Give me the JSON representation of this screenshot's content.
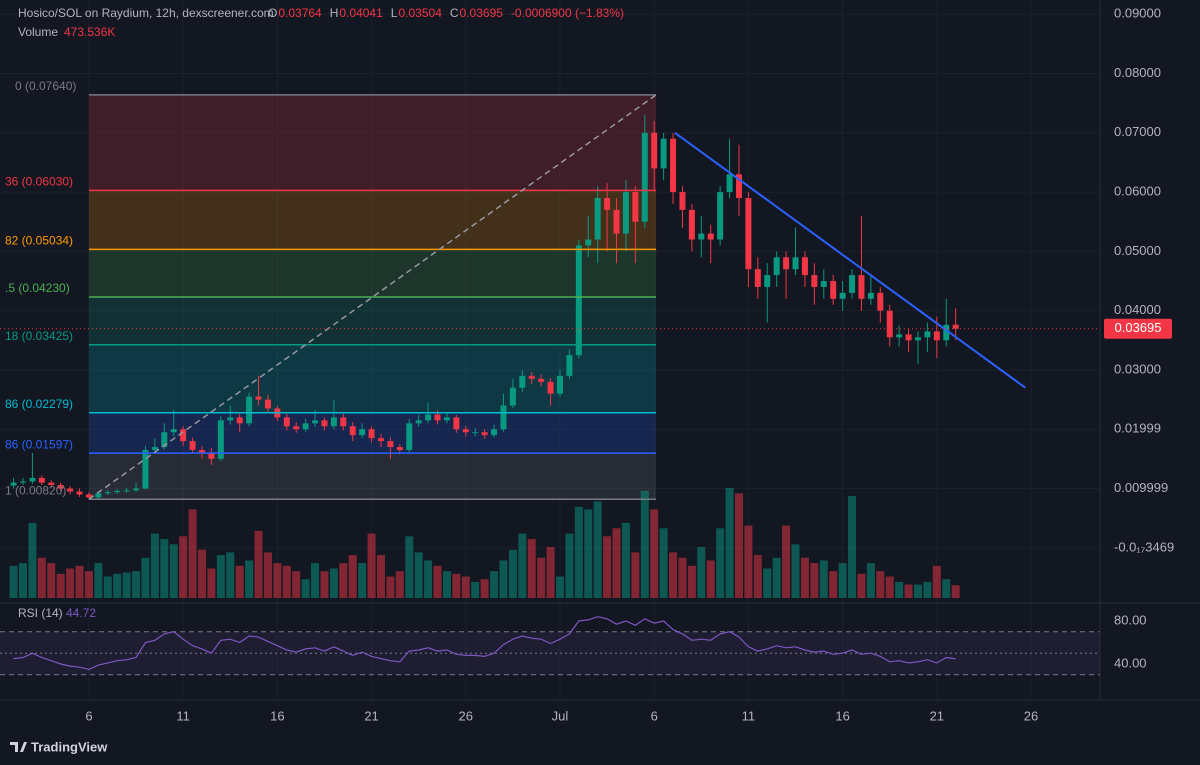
{
  "chart_data": {
    "type": "candlestick",
    "title": "Hosico/SOL on Raydium, 12h, dexscreener.com",
    "ohlc_labels": [
      "O",
      "H",
      "L",
      "C"
    ],
    "change": "-0.0006900 (−1.83%)",
    "up_color": "#089981",
    "down_color": "#f23645",
    "x": [
      1,
      1.5,
      2,
      2.5,
      3,
      3.5,
      4,
      4.5,
      5,
      5.5,
      6,
      6.5,
      7,
      7.5,
      8,
      8.5,
      9,
      9.5,
      10,
      10.5,
      11,
      11.5,
      12,
      12.5,
      13,
      13.5,
      14,
      14.5,
      15,
      15.5,
      16,
      16.5,
      17,
      17.5,
      18,
      18.5,
      19,
      19.5,
      20,
      20.5,
      21,
      21.5,
      22,
      22.5,
      23,
      23.5,
      24,
      24.5,
      25,
      25.5,
      26,
      26.5,
      27,
      27.5,
      28,
      28.5,
      29,
      29.5,
      30,
      30.5,
      31,
      31.5,
      32,
      32.5,
      33,
      33.5,
      34,
      34.5,
      35,
      35.5,
      36,
      36.5,
      37,
      37.5,
      38,
      38.5,
      39,
      39.5,
      40,
      40.5,
      41,
      41.5,
      42,
      42.5,
      43,
      43.5,
      44,
      44.5,
      45,
      45.5,
      46,
      46.5,
      47,
      47.5,
      48,
      48.5,
      49,
      49.5,
      50,
      50.5,
      51
    ],
    "candles": [
      [
        0.0105,
        0.0118,
        0.01,
        0.011
      ],
      [
        0.011,
        0.0118,
        0.0106,
        0.0112
      ],
      [
        0.0112,
        0.016,
        0.0108,
        0.0118
      ],
      [
        0.0118,
        0.0122,
        0.0106,
        0.011
      ],
      [
        0.011,
        0.0114,
        0.0102,
        0.0106
      ],
      [
        0.0106,
        0.011,
        0.0096,
        0.01
      ],
      [
        0.01,
        0.0104,
        0.009,
        0.0095
      ],
      [
        0.0095,
        0.01,
        0.0086,
        0.009
      ],
      [
        0.009,
        0.0094,
        0.0082,
        0.0085
      ],
      [
        0.0085,
        0.0096,
        0.0083,
        0.0092
      ],
      [
        0.0092,
        0.0098,
        0.0089,
        0.0094
      ],
      [
        0.0094,
        0.0099,
        0.0091,
        0.0096
      ],
      [
        0.0096,
        0.0101,
        0.0093,
        0.0097
      ],
      [
        0.0097,
        0.011,
        0.0094,
        0.01
      ],
      [
        0.01,
        0.0172,
        0.0098,
        0.0165
      ],
      [
        0.0165,
        0.0185,
        0.016,
        0.017
      ],
      [
        0.017,
        0.021,
        0.0166,
        0.0195
      ],
      [
        0.0195,
        0.0232,
        0.0188,
        0.02
      ],
      [
        0.02,
        0.0205,
        0.0172,
        0.018
      ],
      [
        0.018,
        0.0186,
        0.016,
        0.0165
      ],
      [
        0.0165,
        0.0172,
        0.015,
        0.016
      ],
      [
        0.016,
        0.0168,
        0.014,
        0.015
      ],
      [
        0.015,
        0.0222,
        0.0146,
        0.0215
      ],
      [
        0.0215,
        0.024,
        0.0208,
        0.022
      ],
      [
        0.022,
        0.0226,
        0.0195,
        0.021
      ],
      [
        0.021,
        0.0262,
        0.0205,
        0.0255
      ],
      [
        0.0255,
        0.029,
        0.024,
        0.025
      ],
      [
        0.025,
        0.0258,
        0.0228,
        0.0235
      ],
      [
        0.0235,
        0.024,
        0.0214,
        0.022
      ],
      [
        0.022,
        0.0226,
        0.0198,
        0.0205
      ],
      [
        0.0205,
        0.0212,
        0.0194,
        0.02
      ],
      [
        0.02,
        0.0218,
        0.0196,
        0.021
      ],
      [
        0.021,
        0.0232,
        0.0204,
        0.0215
      ],
      [
        0.0215,
        0.022,
        0.0198,
        0.0205
      ],
      [
        0.0205,
        0.025,
        0.02,
        0.022
      ],
      [
        0.022,
        0.0226,
        0.0198,
        0.0205
      ],
      [
        0.0205,
        0.0212,
        0.018,
        0.019
      ],
      [
        0.019,
        0.021,
        0.0185,
        0.02
      ],
      [
        0.02,
        0.0205,
        0.0178,
        0.0185
      ],
      [
        0.0185,
        0.0192,
        0.017,
        0.018
      ],
      [
        0.018,
        0.0186,
        0.015,
        0.017
      ],
      [
        0.017,
        0.0175,
        0.0158,
        0.0165
      ],
      [
        0.0165,
        0.0218,
        0.016,
        0.021
      ],
      [
        0.021,
        0.0225,
        0.0204,
        0.0215
      ],
      [
        0.0215,
        0.0245,
        0.021,
        0.0225
      ],
      [
        0.0225,
        0.0232,
        0.0208,
        0.0215
      ],
      [
        0.0215,
        0.0228,
        0.021,
        0.022
      ],
      [
        0.022,
        0.0224,
        0.0194,
        0.02
      ],
      [
        0.02,
        0.0206,
        0.0188,
        0.0195
      ],
      [
        0.0195,
        0.0202,
        0.0188,
        0.0195
      ],
      [
        0.0195,
        0.02,
        0.0184,
        0.019
      ],
      [
        0.019,
        0.0208,
        0.0186,
        0.02
      ],
      [
        0.02,
        0.026,
        0.0196,
        0.024
      ],
      [
        0.024,
        0.0285,
        0.0236,
        0.027
      ],
      [
        0.027,
        0.03,
        0.0262,
        0.029
      ],
      [
        0.029,
        0.0296,
        0.0276,
        0.0285
      ],
      [
        0.0285,
        0.0292,
        0.0272,
        0.028
      ],
      [
        0.028,
        0.0286,
        0.024,
        0.026
      ],
      [
        0.026,
        0.03,
        0.0255,
        0.029
      ],
      [
        0.029,
        0.0335,
        0.0285,
        0.0325
      ],
      [
        0.0325,
        0.052,
        0.032,
        0.051
      ],
      [
        0.051,
        0.056,
        0.049,
        0.052
      ],
      [
        0.052,
        0.061,
        0.048,
        0.059
      ],
      [
        0.059,
        0.0615,
        0.05,
        0.057
      ],
      [
        0.057,
        0.059,
        0.048,
        0.053
      ],
      [
        0.053,
        0.062,
        0.05,
        0.06
      ],
      [
        0.06,
        0.061,
        0.048,
        0.055
      ],
      [
        0.055,
        0.073,
        0.054,
        0.07
      ],
      [
        0.07,
        0.072,
        0.06,
        0.064
      ],
      [
        0.064,
        0.07,
        0.062,
        0.069
      ],
      [
        0.069,
        0.07,
        0.058,
        0.06
      ],
      [
        0.06,
        0.061,
        0.054,
        0.057
      ],
      [
        0.057,
        0.058,
        0.05,
        0.052
      ],
      [
        0.052,
        0.056,
        0.049,
        0.053
      ],
      [
        0.053,
        0.0545,
        0.048,
        0.052
      ],
      [
        0.052,
        0.061,
        0.051,
        0.06
      ],
      [
        0.06,
        0.069,
        0.059,
        0.063
      ],
      [
        0.063,
        0.068,
        0.056,
        0.059
      ],
      [
        0.059,
        0.06,
        0.044,
        0.047
      ],
      [
        0.047,
        0.049,
        0.042,
        0.044
      ],
      [
        0.044,
        0.048,
        0.038,
        0.046
      ],
      [
        0.046,
        0.05,
        0.044,
        0.049
      ],
      [
        0.049,
        0.05,
        0.042,
        0.047
      ],
      [
        0.047,
        0.054,
        0.046,
        0.049
      ],
      [
        0.049,
        0.05,
        0.044,
        0.046
      ],
      [
        0.046,
        0.048,
        0.041,
        0.044
      ],
      [
        0.044,
        0.047,
        0.042,
        0.045
      ],
      [
        0.045,
        0.046,
        0.041,
        0.042
      ],
      [
        0.042,
        0.045,
        0.04,
        0.043
      ],
      [
        0.043,
        0.047,
        0.042,
        0.046
      ],
      [
        0.046,
        0.056,
        0.04,
        0.042
      ],
      [
        0.042,
        0.046,
        0.041,
        0.043
      ],
      [
        0.043,
        0.044,
        0.038,
        0.04
      ],
      [
        0.04,
        0.041,
        0.034,
        0.0355
      ],
      [
        0.0355,
        0.0375,
        0.034,
        0.036
      ],
      [
        0.036,
        0.037,
        0.033,
        0.035
      ],
      [
        0.035,
        0.0365,
        0.031,
        0.0355
      ],
      [
        0.0355,
        0.038,
        0.033,
        0.0365
      ],
      [
        0.0365,
        0.039,
        0.032,
        0.035
      ],
      [
        0.035,
        0.042,
        0.034,
        0.0376
      ],
      [
        0.03764,
        0.04041,
        0.03504,
        0.03695
      ]
    ],
    "xlim": [
      0.28,
      58.66
    ],
    "ylim": [
      -0.0088,
      0.0924
    ],
    "xticks": [
      {
        "value": 5,
        "label": "6"
      },
      {
        "value": 10,
        "label": "11"
      },
      {
        "value": 15,
        "label": "16"
      },
      {
        "value": 20,
        "label": "21"
      },
      {
        "value": 25,
        "label": "26"
      },
      {
        "value": 30,
        "label": "Jul"
      },
      {
        "value": 35,
        "label": "6"
      },
      {
        "value": 40,
        "label": "11"
      },
      {
        "value": 45,
        "label": "16"
      },
      {
        "value": 50,
        "label": "21"
      },
      {
        "value": 55,
        "label": "26"
      }
    ],
    "yticks": [
      {
        "value": 0.09,
        "label": "0.09000"
      },
      {
        "value": 0.08,
        "label": "0.08000"
      },
      {
        "value": 0.07,
        "label": "0.07000"
      },
      {
        "value": 0.06,
        "label": "0.06000"
      },
      {
        "value": 0.05,
        "label": "0.05000"
      },
      {
        "value": 0.04,
        "label": "0.04000"
      },
      {
        "value": 0.03,
        "label": "0.03000"
      },
      {
        "value": 0.01999,
        "label": "0.01999"
      },
      {
        "value": 0.009999,
        "label": "0.009999"
      },
      {
        "value": -3.469e-18,
        "label": "-0.0₁₇3469"
      }
    ],
    "grid": true,
    "volume": {
      "label": "Volume",
      "last_label": "473.536K",
      "values": [
        1200,
        1300,
        2800,
        1500,
        1300,
        900,
        1100,
        1200,
        1000,
        1300,
        800,
        900,
        950,
        1000,
        1500,
        2400,
        2200,
        2000,
        2300,
        3300,
        1800,
        1100,
        1600,
        1700,
        1200,
        1400,
        2500,
        1700,
        1300,
        1200,
        1000,
        700,
        1300,
        1000,
        1100,
        1300,
        1600,
        1300,
        2400,
        1600,
        800,
        1000,
        2300,
        1700,
        1400,
        1200,
        1000,
        900,
        800,
        600,
        700,
        1000,
        1400,
        1800,
        2400,
        2200,
        1500,
        1900,
        800,
        2400,
        3400,
        3300,
        3600,
        2300,
        2600,
        2800,
        1700,
        4000,
        3300,
        2600,
        1700,
        1500,
        1200,
        1900,
        1400,
        2600,
        4100,
        3900,
        2700,
        1600,
        1100,
        1500,
        2700,
        2000,
        1500,
        1300,
        1400,
        1000,
        1300,
        3800,
        900,
        1300,
        1000,
        800,
        600,
        500,
        500,
        600,
        1200,
        700,
        473.536
      ]
    },
    "fib": {
      "x": [
        5,
        35.1
      ],
      "levels": [
        {
          "value": 0.0764,
          "label": "0 (0.07640)",
          "color": "#787b86"
        },
        {
          "value": 0.0603,
          "label": "36 (0.06030)",
          "color": "#f23645"
        },
        {
          "value": 0.05034,
          "label": "82 (0.05034)",
          "color": "#ff9800"
        },
        {
          "value": 0.0423,
          "label": ".5 (0.04230)",
          "color": "#4caf50"
        },
        {
          "value": 0.03425,
          "label": "18 (0.03425)",
          "color": "#089981"
        },
        {
          "value": 0.02279,
          "label": "86 (0.02279)",
          "color": "#00bcd4"
        },
        {
          "value": 0.01597,
          "label": "86 (0.01597)",
          "color": "#2962ff"
        },
        {
          "value": 0.0082,
          "label": "1 (0.00820)",
          "color": "#787b86"
        }
      ]
    },
    "trendline": {
      "x": [
        36.1,
        54.7
      ],
      "y": [
        0.07,
        0.027
      ],
      "color": "#2962ff"
    },
    "rsi": {
      "label": "RSI (14)",
      "color": "#7e57c2",
      "ylim": [
        15.8,
        96.7
      ],
      "yticks": [
        {
          "value": 80,
          "label": "80.00"
        },
        {
          "value": 40,
          "label": "40.00"
        }
      ],
      "levels": [
        70,
        50,
        30
      ],
      "values": [
        45,
        46,
        50,
        46,
        43,
        40,
        38,
        37,
        35,
        39,
        41,
        43,
        44,
        46,
        60,
        62,
        68,
        70,
        63,
        57,
        54,
        50,
        62,
        63,
        60,
        66,
        65,
        61,
        57,
        53,
        51,
        54,
        55,
        52,
        56,
        52,
        48,
        51,
        47,
        45,
        43,
        42,
        52,
        53,
        55,
        52,
        53,
        49,
        48,
        48,
        47,
        50,
        58,
        63,
        66,
        64,
        63,
        59,
        63,
        68,
        80,
        81,
        84,
        82,
        77,
        80,
        76,
        82,
        78,
        80,
        72,
        68,
        62,
        63,
        62,
        68,
        70,
        65,
        56,
        52,
        54,
        57,
        55,
        56,
        53,
        51,
        52,
        49,
        50,
        53,
        49,
        50,
        47,
        42,
        43,
        41,
        42,
        44,
        41,
        46,
        44.72
      ]
    },
    "branding": "TradingView"
  }
}
